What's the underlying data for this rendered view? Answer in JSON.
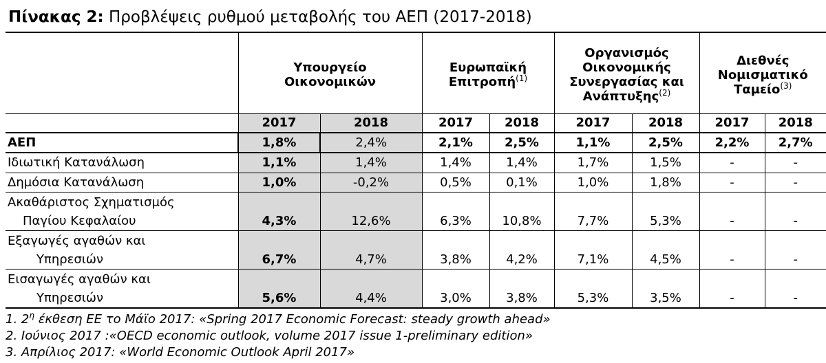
{
  "title": {
    "prefix": "Πίνακας 2:",
    "text": "Προβλέψεις ρυθμού μεταβολής του ΑΕΠ (2017-2018)"
  },
  "table": {
    "groups": [
      {
        "line1": "Υπουργείο",
        "line2": "Οικονομικών",
        "line3": "",
        "line4": "",
        "note": ""
      },
      {
        "line1": "Ευρωπαϊκή",
        "line2": "Επιτροπή",
        "line3": "",
        "line4": "",
        "note": "(1)"
      },
      {
        "line1": "Οργανισμός",
        "line2": "Οικονομικής",
        "line3": "Συνεργασίας και",
        "line4": "Ανάπτυξης",
        "note": "(2)"
      },
      {
        "line1": "Διεθνές",
        "line2": "Νομισματικό",
        "line3": "Ταμείο",
        "line4": "",
        "note": "(3)"
      }
    ],
    "years": [
      "2017",
      "2018",
      "2017",
      "2018",
      "2017",
      "2018",
      "2017",
      "2018"
    ],
    "rows": [
      {
        "line1": "ΑΕΠ",
        "line2": "",
        "values": [
          "1,8%",
          "2,4%",
          "2,1%",
          "2,5%",
          "1,1%",
          "2,5%",
          "2,2%",
          "2,7%"
        ]
      },
      {
        "line1": "Ιδιωτική Κατανάλωση",
        "line2": "",
        "values": [
          "1,1%",
          "1,4%",
          "1,4%",
          "1,4%",
          "1,7%",
          "1,5%",
          "-",
          "-"
        ]
      },
      {
        "line1": "Δημόσια Κατανάλωση",
        "line2": "",
        "values": [
          "1,0%",
          "-0,2%",
          "0,5%",
          "0,1%",
          "1,0%",
          "1,8%",
          "-",
          "-"
        ]
      },
      {
        "line1": "Ακαθάριστος Σχηματισμός",
        "line2": "Παγίου Κεφαλαίου",
        "values": [
          "4,3%",
          "12,6%",
          "6,3%",
          "10,8%",
          "7,7%",
          "5,3%",
          "-",
          "-"
        ]
      },
      {
        "line1": "Εξαγωγές αγαθών και",
        "line2": "Υπηρεσιών",
        "values": [
          "6,7%",
          "4,7%",
          "3,8%",
          "4,2%",
          "7,1%",
          "4,5%",
          "-",
          "-"
        ]
      },
      {
        "line1": "Εισαγωγές αγαθών και",
        "line2": "Υπηρεσιών",
        "values": [
          "5,6%",
          "4,4%",
          "3,0%",
          "3,8%",
          "5,3%",
          "3,5%",
          "-",
          "-"
        ]
      }
    ]
  },
  "notes": [
    {
      "prefix": "1. 2",
      "sup": "η",
      "text": " έκθεση ΕΕ το Μάϊο 2017: «Spring 2017 Economic Forecast: steady growth ahead»"
    },
    {
      "prefix": "2. Ιούνιος 2017 :«OECD economic outlook, volume 2017 issue 1-preliminary edition»",
      "sup": "",
      "text": ""
    },
    {
      "prefix": "3.  Απρίλιος 2017: «World Economic Outlook  April 2017»",
      "sup": "",
      "text": ""
    }
  ]
}
